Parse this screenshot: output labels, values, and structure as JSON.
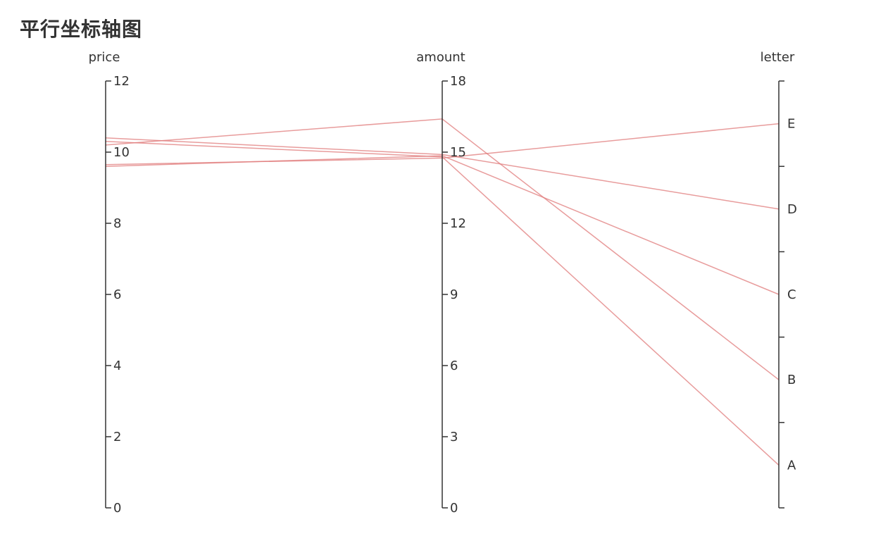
{
  "page": {
    "title": "平行坐标轴图"
  },
  "chart_data": {
    "type": "parallel",
    "title": "平行坐标轴图",
    "dimensions": [
      {
        "name": "price",
        "kind": "value",
        "range": [
          0,
          12
        ],
        "ticks": [
          "0",
          "2",
          "4",
          "6",
          "8",
          "10",
          "12"
        ]
      },
      {
        "name": "amount",
        "kind": "value",
        "range": [
          0,
          18
        ],
        "ticks": [
          "0",
          "3",
          "6",
          "9",
          "12",
          "15",
          "18"
        ]
      },
      {
        "name": "letter",
        "kind": "category",
        "categories": [
          "A",
          "B",
          "C",
          "D",
          "E"
        ]
      }
    ],
    "records": [
      {
        "price": 10.3,
        "amount": 14.8,
        "letter": "A"
      },
      {
        "price": 10.4,
        "amount": 14.9,
        "letter": "D"
      },
      {
        "price": 9.65,
        "amount": 14.75,
        "letter": "E"
      },
      {
        "price": 9.6,
        "amount": 14.85,
        "letter": "C"
      },
      {
        "price": 10.2,
        "amount": 16.4,
        "letter": "B"
      }
    ],
    "line_color": "#e07b7b",
    "axis_color": "#333333",
    "grid": false
  }
}
